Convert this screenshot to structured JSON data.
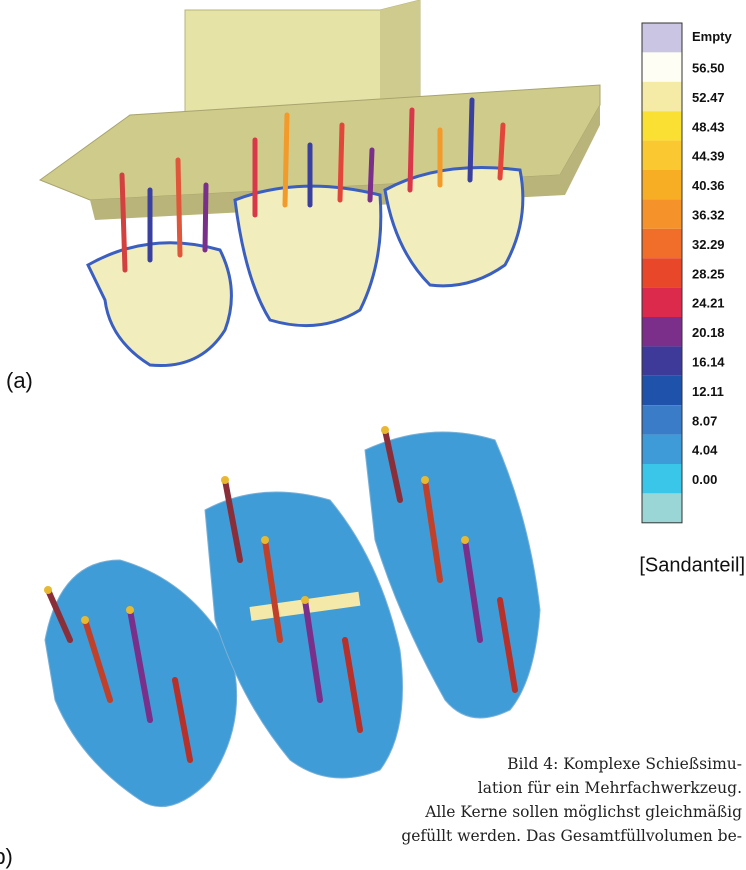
{
  "figure": {
    "panel_labels": [
      "(a)",
      "(b)"
    ],
    "legend": {
      "items": [
        {
          "label": "Empty",
          "color": "#c9c5e2"
        },
        {
          "label": "56.50",
          "color": "#fffef4"
        },
        {
          "label": "52.47",
          "color": "#f6eba6"
        },
        {
          "label": "48.43",
          "color": "#fbe034"
        },
        {
          "label": "44.39",
          "color": "#fac830"
        },
        {
          "label": "40.36",
          "color": "#f8ae24"
        },
        {
          "label": "36.32",
          "color": "#f5922a"
        },
        {
          "label": "32.29",
          "color": "#f06e2a"
        },
        {
          "label": "28.25",
          "color": "#e8472a"
        },
        {
          "label": "24.21",
          "color": "#dc2a4c"
        },
        {
          "label": "20.18",
          "color": "#7c2f8a"
        },
        {
          "label": "16.14",
          "color": "#3e3a9a"
        },
        {
          "label": "12.11",
          "color": "#1f52aa"
        },
        {
          "label": "8.07",
          "color": "#3a7cc8"
        },
        {
          "label": "4.04",
          "color": "#3f9ad8"
        },
        {
          "label": "0.00",
          "color": "#3ac6e8"
        }
      ],
      "bottom_color": "#9ad6d6",
      "unit": "[Sandanteil]"
    },
    "caption": [
      "Bild 4: Komplexe Schießsimu-",
      "lation für ein Mehrfachwerkzeug.",
      "Alle Kerne sollen möglichst gleichmäßig",
      "gefüllt werden. Das Gesamtfüllvolumen be-"
    ]
  }
}
